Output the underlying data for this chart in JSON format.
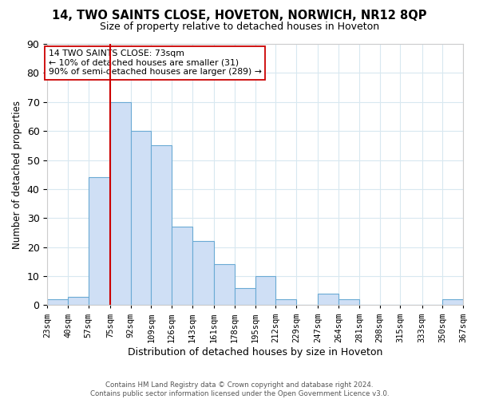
{
  "title": "14, TWO SAINTS CLOSE, HOVETON, NORWICH, NR12 8QP",
  "subtitle": "Size of property relative to detached houses in Hoveton",
  "xlabel": "Distribution of detached houses by size in Hoveton",
  "ylabel": "Number of detached properties",
  "footer_line1": "Contains HM Land Registry data © Crown copyright and database right 2024.",
  "footer_line2": "Contains public sector information licensed under the Open Government Licence v3.0.",
  "bin_edges": [
    23,
    40,
    57,
    75,
    92,
    109,
    126,
    143,
    161,
    178,
    195,
    212,
    229,
    247,
    264,
    281,
    298,
    315,
    333,
    350,
    367
  ],
  "bar_heights": [
    2,
    3,
    44,
    70,
    60,
    55,
    27,
    22,
    14,
    6,
    10,
    2,
    0,
    4,
    2,
    0,
    0,
    0,
    0,
    2
  ],
  "bar_color": "#cfdff5",
  "bar_edge_color": "#6aaad4",
  "vline_x": 75,
  "vline_color": "#cc0000",
  "ylim": [
    0,
    90
  ],
  "annotation_text": "14 TWO SAINTS CLOSE: 73sqm\n← 10% of detached houses are smaller (31)\n90% of semi-detached houses are larger (289) →",
  "grid_color": "#d8e8f0",
  "bg_color": "#ffffff",
  "title_fontsize": 10.5,
  "subtitle_fontsize": 9,
  "ylabel_fontsize": 8.5,
  "xlabel_fontsize": 9,
  "tick_fontsize": 7.5,
  "tick_labels": [
    "23sqm",
    "40sqm",
    "57sqm",
    "75sqm",
    "92sqm",
    "109sqm",
    "126sqm",
    "143sqm",
    "161sqm",
    "178sqm",
    "195sqm",
    "212sqm",
    "229sqm",
    "247sqm",
    "264sqm",
    "281sqm",
    "298sqm",
    "315sqm",
    "333sqm",
    "350sqm",
    "367sqm"
  ]
}
